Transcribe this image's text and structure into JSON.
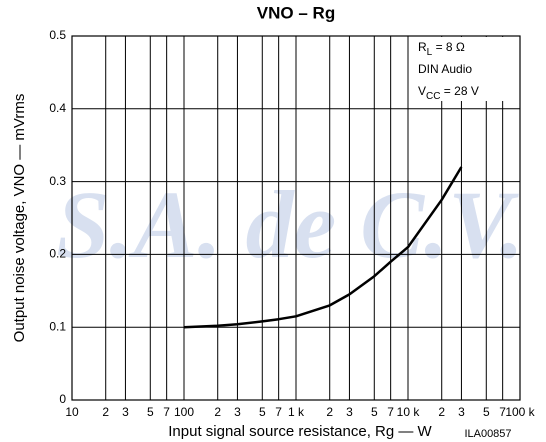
{
  "chart_data": {
    "type": "line",
    "title": "VNO – Rg",
    "x_label": "Input signal source resistance, Rg — W",
    "y_label": "Output noise voltage, VNO — mVrms",
    "code": "ILA00857",
    "watermark": "S.A. de C.V.",
    "annotations": [
      {
        "main": "R",
        "sub": "L",
        "tail": " = 8 Ω"
      },
      {
        "main": "DIN Audio"
      },
      {
        "main": "V",
        "sub": "CC",
        "tail": " = 28 V"
      }
    ],
    "x": [
      100,
      200,
      300,
      500,
      700,
      1000,
      2000,
      3000,
      5000,
      7000,
      10000,
      20000,
      30000
    ],
    "values": [
      0.1,
      0.102,
      0.104,
      0.108,
      0.111,
      0.115,
      0.13,
      0.145,
      0.17,
      0.19,
      0.21,
      0.275,
      0.32
    ],
    "color": "#000000",
    "xscale": "log",
    "xlim": [
      10,
      100000
    ],
    "ylim": [
      0,
      0.5
    ],
    "xticks": [
      10,
      {
        "value": 20,
        "label": "2"
      },
      {
        "value": 30,
        "label": "3"
      },
      {
        "value": 50,
        "label": "5"
      },
      {
        "value": 70,
        "label": "7"
      },
      100,
      {
        "value": 200,
        "label": "2"
      },
      {
        "value": 300,
        "label": "3"
      },
      {
        "value": 500,
        "label": "5"
      },
      {
        "value": 700,
        "label": "7"
      },
      {
        "value": 1000,
        "label": "1 k"
      },
      {
        "value": 2000,
        "label": "2"
      },
      {
        "value": 3000,
        "label": "3"
      },
      {
        "value": 5000,
        "label": "5"
      },
      {
        "value": 7000,
        "label": "7"
      },
      {
        "value": 10000,
        "label": "10 k"
      },
      {
        "value": 20000,
        "label": "2"
      },
      {
        "value": 30000,
        "label": "3"
      },
      {
        "value": 50000,
        "label": "5"
      },
      {
        "value": 70000,
        "label": "7"
      },
      {
        "value": 100000,
        "label": "100 k"
      }
    ],
    "yticks": [
      0,
      0.1,
      0.2,
      0.3,
      0.4,
      0.5
    ],
    "grid": true
  }
}
